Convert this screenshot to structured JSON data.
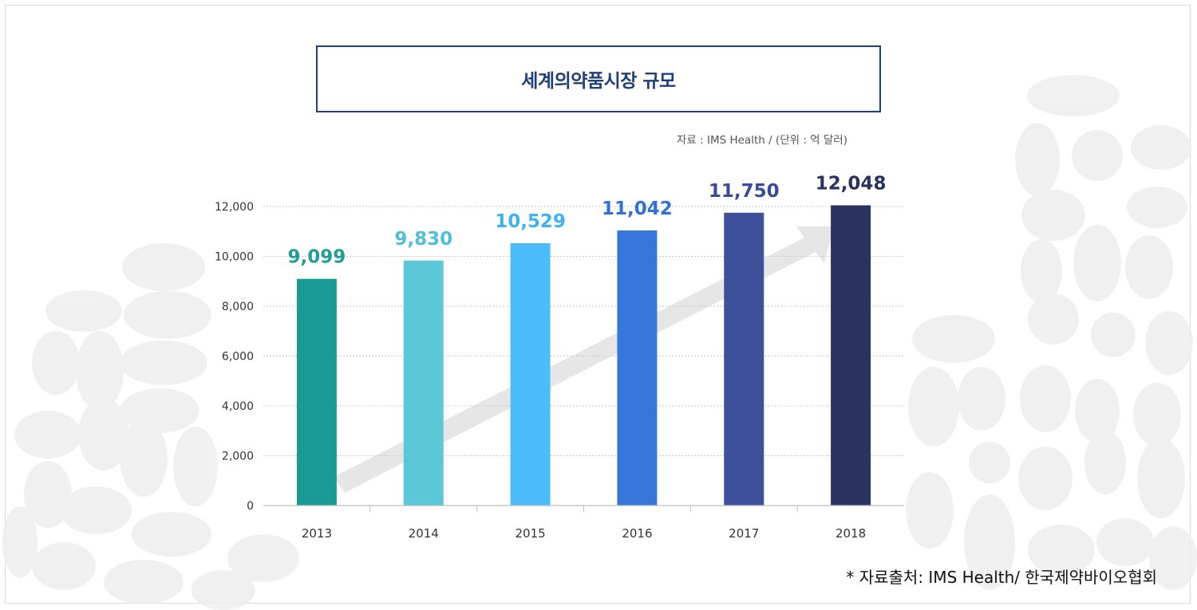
{
  "colors": {
    "title": "#1f3f7a",
    "axis_text": "#333333",
    "grid": "#c8c8c8",
    "arrow": "#e6e6e6"
  },
  "header": {
    "title": "세계의약품시장 규모"
  },
  "source_note": "자료 : IMS Health / (단위 : 억 달러)",
  "footnote": "* 자료출처: IMS Health/ 한국제약바이오협회",
  "chart_data": {
    "type": "bar",
    "title": "세계의약품시장 규모",
    "xlabel": "",
    "ylabel": "",
    "categories": [
      "2013",
      "2014",
      "2015",
      "2016",
      "2017",
      "2018"
    ],
    "values": [
      9099,
      9830,
      10529,
      11042,
      11750,
      12048
    ],
    "value_labels": [
      "9,099",
      "9,830",
      "10,529",
      "11,042",
      "11,750",
      "12,048"
    ],
    "bar_colors": [
      "#1a9a94",
      "#5ac8d6",
      "#4dbcfb",
      "#3776db",
      "#3e4f9c",
      "#2a3360"
    ],
    "label_colors": [
      "#1f9e96",
      "#4fbfd3",
      "#3fb2f5",
      "#3270d4",
      "#3a4b9c",
      "#28325e"
    ],
    "yticks": [
      0,
      2000,
      4000,
      6000,
      8000,
      10000,
      12000
    ],
    "ytick_labels": [
      "0",
      "2,000",
      "4,000",
      "6,000",
      "8,000",
      "10,000",
      "12,000"
    ],
    "ylim": [
      0,
      12000
    ],
    "grid": true
  }
}
